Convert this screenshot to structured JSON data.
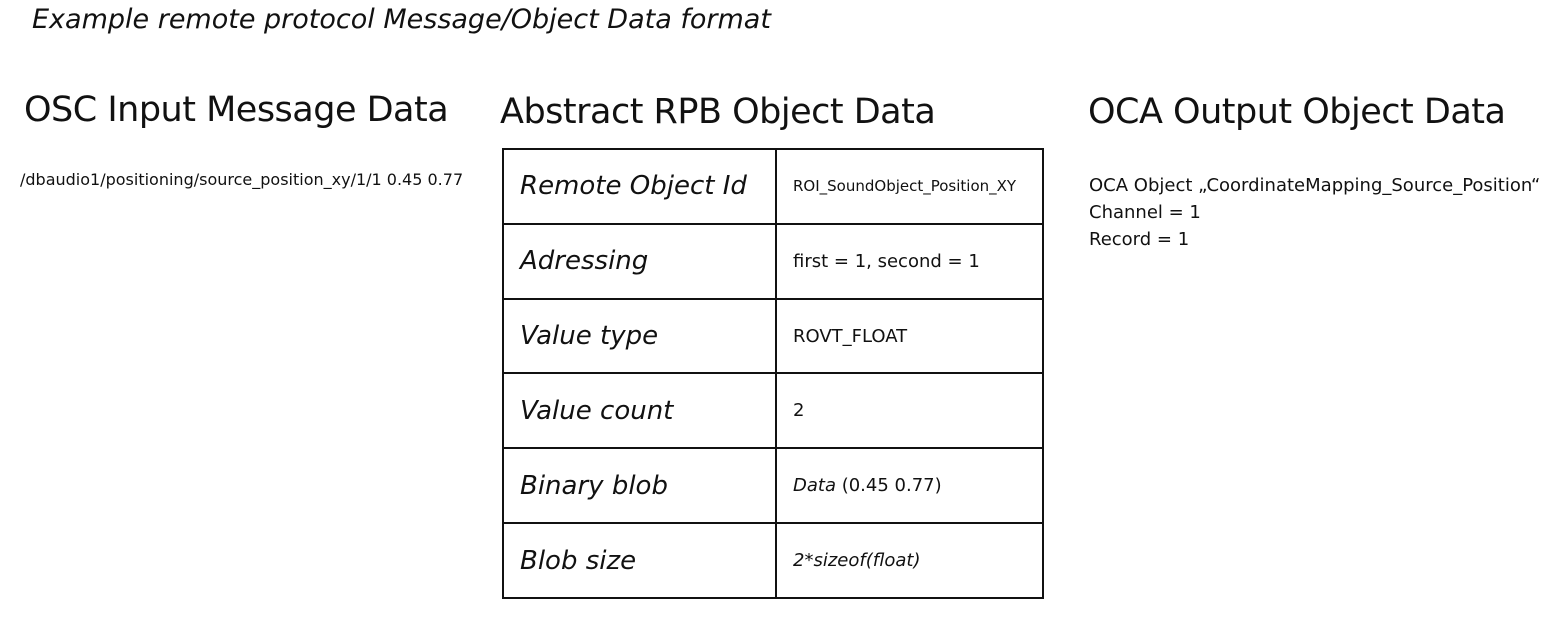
{
  "title": "Example remote protocol Message/Object Data format",
  "osc": {
    "heading": "OSC Input Message Data",
    "message": "/dbaudio1/positioning/source_position_xy/1/1 0.45 0.77"
  },
  "rpb": {
    "heading": "Abstract RPB Object Data",
    "rows": [
      {
        "key": "Remote Object Id",
        "value": "ROI_SoundObject_Position_XY"
      },
      {
        "key": "Adressing",
        "value": "first = 1, second = 1"
      },
      {
        "key": "Value type",
        "value": "ROVT_FLOAT"
      },
      {
        "key": "Value count",
        "value": "2"
      },
      {
        "key": "Binary blob",
        "value_italic": "Data",
        "value": " (0.45 0.77)"
      },
      {
        "key": "Blob size",
        "value": "2*sizeof(float)"
      }
    ]
  },
  "oca": {
    "heading": "OCA Output Object Data",
    "lines": [
      "OCA Object „CoordinateMapping_Source_Position“",
      "Channel = 1",
      "Record = 1"
    ]
  }
}
